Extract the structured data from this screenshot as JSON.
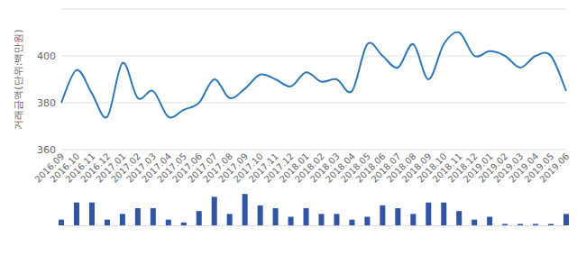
{
  "chart_data": [
    {
      "type": "line",
      "y_label": "거래금액(단위:백만원)",
      "categories": [
        "2016.09",
        "2016.10",
        "2016.11",
        "2016.12",
        "2017.01",
        "2017.02",
        "2017.03",
        "2017.04",
        "2017.05",
        "2017.06",
        "2017.07",
        "2017.08",
        "2017.09",
        "2017.10",
        "2017.11",
        "2017.12",
        "2018.01",
        "2018.02",
        "2018.03",
        "2018.04",
        "2018.05",
        "2018.06",
        "2018.07",
        "2018.08",
        "2018.09",
        "2018.10",
        "2018.11",
        "2018.12",
        "2019.01",
        "2019.02",
        "2019.03",
        "2019.04",
        "2019.05",
        "2019.06"
      ],
      "values": [
        380,
        394,
        384,
        374,
        397,
        382,
        385,
        374,
        377,
        380,
        390,
        382,
        386,
        392,
        390,
        387,
        393,
        389,
        390,
        385,
        405,
        400,
        395,
        405,
        390,
        405,
        410,
        400,
        402,
        400,
        395,
        400,
        400,
        385
      ],
      "color": "#2f78b7",
      "ylim": [
        360,
        420
      ],
      "yticks": [
        360,
        380,
        400
      ],
      "grid": true
    },
    {
      "type": "bar",
      "categories": [
        null,
        null,
        null,
        null,
        null,
        null,
        null,
        null,
        null,
        null,
        null,
        null,
        null,
        null,
        null,
        null,
        null,
        null,
        null,
        null,
        null,
        null,
        null,
        null,
        null,
        null,
        null,
        null,
        null,
        null,
        null,
        null,
        null,
        null
      ],
      "values": [
        2,
        8,
        8,
        2,
        4,
        6,
        6,
        2,
        1,
        5,
        10,
        4,
        11,
        7,
        6,
        3,
        6,
        4,
        4,
        2,
        3,
        7,
        6,
        4,
        8,
        8,
        5,
        2,
        3,
        0.5,
        0.5,
        0.5,
        0.5,
        4
      ],
      "color": "#2f55a4",
      "ylim": [
        0,
        12
      ],
      "tick_labels": false
    }
  ]
}
